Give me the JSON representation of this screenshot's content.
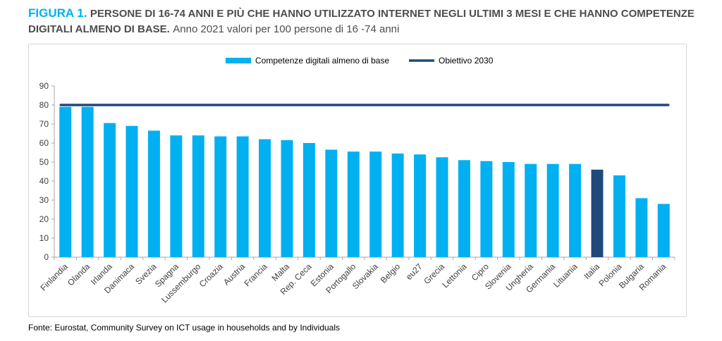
{
  "title": {
    "figure_label": "FIGURA 1.",
    "main": "PERSONE DI 16-74 ANNI E PIÙ CHE HANNO UTILIZZATO INTERNET NEGLI ULTIMI 3 MESI E CHE HANNO COMPETENZE DIGITALI ALMENO DI BASE.",
    "subtitle": "Anno 2021  valori per 100 persone di 16 -74 anni"
  },
  "source": "Fonte: Eurostat, Community Survey on ICT usage in households and by Individuals",
  "colors": {
    "bar": "#00b0f0",
    "highlight_bar": "#1f497d",
    "target_line": "#1f497d",
    "title_accent": "#00b0f0"
  },
  "chart_data": {
    "type": "bar",
    "categories": [
      "Finlandia",
      "Olanda",
      "Irlanda",
      "Danimaca",
      "Svezia",
      "Spagna",
      "Lussemburgo",
      "Croazia",
      "Austria",
      "Francia",
      "Malta",
      "Rep. Ceca",
      "Estonia",
      "Portogallo",
      "Slovakia",
      "Belgio",
      "eu27",
      "Grecia",
      "Lettonia",
      "Cipro",
      "Slovenia",
      "Ungheria",
      "Germania",
      "Lituania",
      "Italia",
      "Polonia",
      "Bulgaria",
      "Romania"
    ],
    "series": [
      {
        "name": "Competenze digitali almeno di base",
        "values": [
          79,
          79,
          70.5,
          69,
          66.5,
          64,
          64,
          63.5,
          63.5,
          62,
          61.5,
          60,
          56.5,
          55.5,
          55.5,
          54.5,
          54,
          52.5,
          51,
          50.5,
          50,
          49,
          49,
          49,
          46,
          43,
          31,
          28
        ]
      }
    ],
    "target": {
      "name": "Obiettivo 2030",
      "value": 80
    },
    "highlight_category": "Italia",
    "ylim": [
      0,
      90
    ],
    "yticks": [
      0,
      10,
      20,
      30,
      40,
      50,
      60,
      70,
      80,
      90
    ],
    "xlabel": "",
    "ylabel": "",
    "legend": "top-center",
    "grid": false
  }
}
